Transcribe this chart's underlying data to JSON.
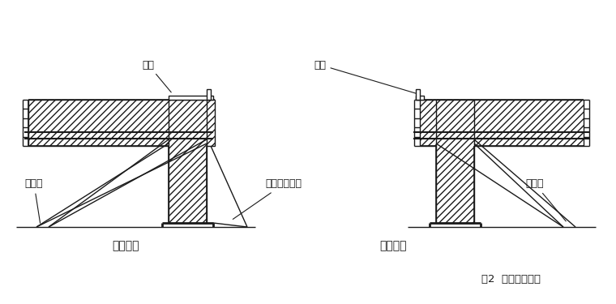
{
  "bg_color": "#ffffff",
  "line_color": "#1a1a1a",
  "title_text": "图2  外墙转角加固",
  "label_danmian": "单面拉结",
  "label_shuangmian": "双面拉结",
  "label_jiaogan_left": "角钢",
  "label_jiaogan_right": "角钢",
  "label_ganglagen_left": "钢拉杆",
  "label_ganglagen_right": "钢拉杆",
  "label_shuini": "水泥砂浆灌实",
  "font_size_label": 9,
  "font_size_caption": 9.5,
  "font_size_subtitle": 10
}
